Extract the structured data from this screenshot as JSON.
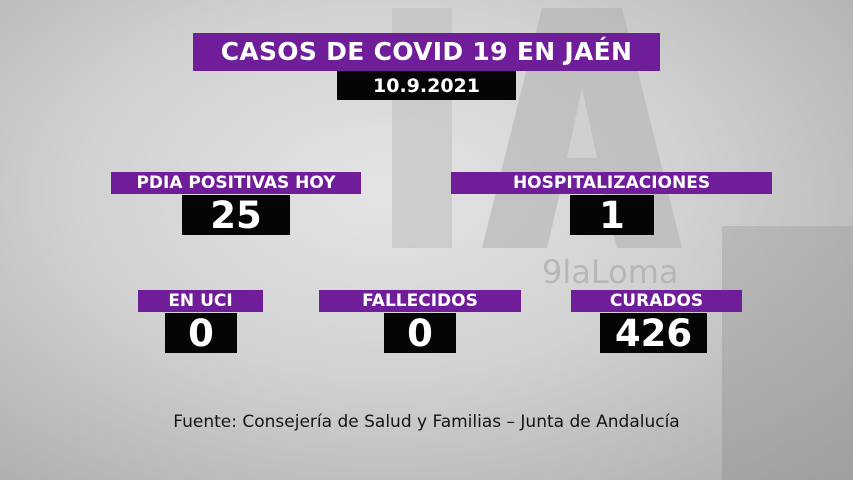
{
  "header": {
    "title": "CASOS DE COVID 19 EN JAÉN",
    "date": "10.9.2021"
  },
  "stats": {
    "pdia_positivas": {
      "label": "PDIA POSITIVAS HOY",
      "value": "25"
    },
    "hospitalizaciones": {
      "label": "HOSPITALIZACIONES",
      "value": "1"
    },
    "en_uci": {
      "label": "EN UCI",
      "value": "0"
    },
    "fallecidos": {
      "label": "FALLECIDOS",
      "value": "0"
    },
    "curados": {
      "label": "CURADOS",
      "value": "426"
    }
  },
  "footer": {
    "source": "Fuente: Consejería de Salud y Familias – Junta de Andalucía"
  },
  "watermark": {
    "logo_text": "9laLoma"
  },
  "colors": {
    "label_bg": "#6f1d99",
    "value_bg": "#050505",
    "text": "#ffffff"
  }
}
